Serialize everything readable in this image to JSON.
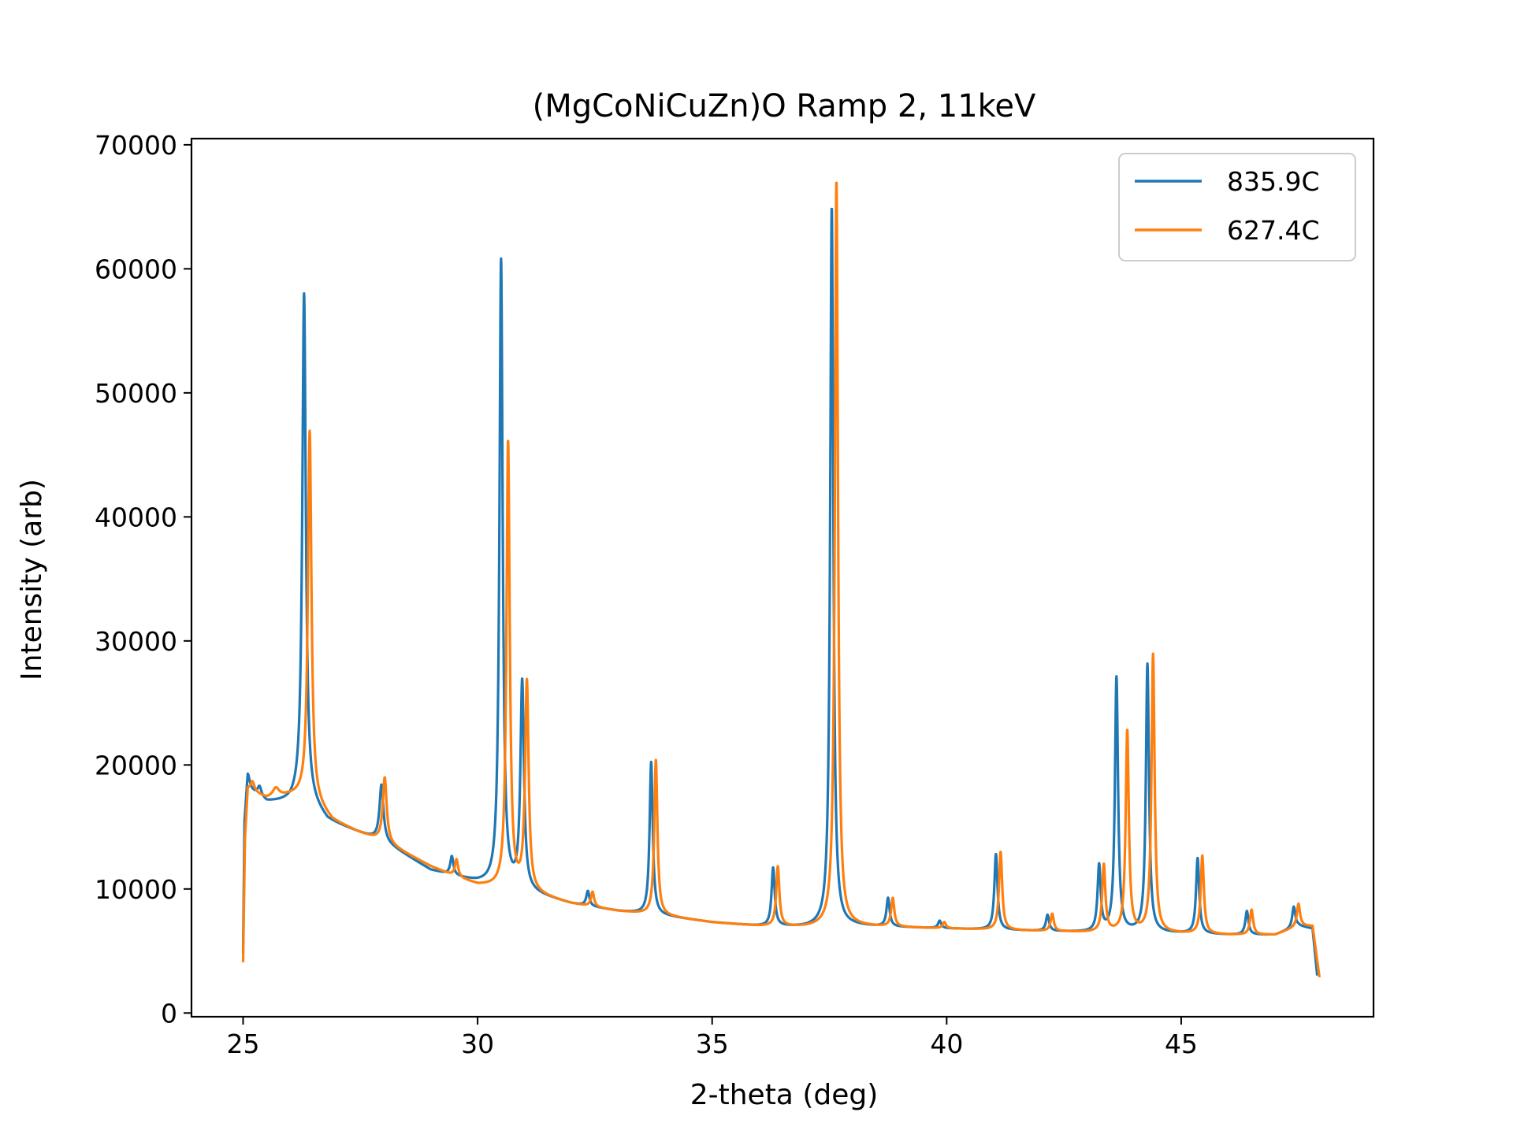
{
  "chart_data": {
    "type": "line",
    "title": "(MgCoNiCuZn)O Ramp 2, 11keV",
    "xlabel": "2-theta (deg)",
    "ylabel": "Intensity (arb)",
    "xlim": [
      23.9,
      49.1
    ],
    "ylim": [
      -300,
      70500
    ],
    "xticks": [
      25,
      30,
      35,
      40,
      45
    ],
    "yticks": [
      0,
      10000,
      20000,
      30000,
      40000,
      50000,
      60000,
      70000
    ],
    "grid": false,
    "legend_position": "top-right",
    "series": [
      {
        "name": "835.9C",
        "color": "#1f77b4",
        "background": [
          [
            25.0,
            4500
          ],
          [
            25.03,
            15000
          ],
          [
            25.1,
            18000
          ],
          [
            25.5,
            17000
          ],
          [
            26.0,
            17000
          ],
          [
            26.3,
            17500
          ],
          [
            26.8,
            15500
          ],
          [
            27.5,
            14500
          ],
          [
            28.0,
            13800
          ],
          [
            29.0,
            11500
          ],
          [
            29.5,
            11000
          ],
          [
            30.0,
            10500
          ],
          [
            31.0,
            9800
          ],
          [
            32.0,
            8800
          ],
          [
            33.0,
            8200
          ],
          [
            34.0,
            7800
          ],
          [
            35.0,
            7300
          ],
          [
            36.0,
            7000
          ],
          [
            37.0,
            6900
          ],
          [
            38.0,
            7000
          ],
          [
            39.0,
            6900
          ],
          [
            40.0,
            6800
          ],
          [
            41.0,
            6700
          ],
          [
            42.0,
            6600
          ],
          [
            43.0,
            6500
          ],
          [
            44.0,
            6500
          ],
          [
            45.0,
            6400
          ],
          [
            46.0,
            6300
          ],
          [
            47.0,
            6300
          ],
          [
            47.5,
            7000
          ],
          [
            47.8,
            6800
          ],
          [
            47.9,
            3000
          ]
        ],
        "peaks": [
          [
            25.1,
            1200,
            0.05
          ],
          [
            25.35,
            800,
            0.05
          ],
          [
            26.3,
            40500,
            0.045
          ],
          [
            27.95,
            4500,
            0.05
          ],
          [
            29.45,
            1500,
            0.04
          ],
          [
            30.5,
            50500,
            0.042
          ],
          [
            30.95,
            16700,
            0.045
          ],
          [
            32.35,
            1200,
            0.04
          ],
          [
            33.7,
            12300,
            0.04
          ],
          [
            36.3,
            4700,
            0.04
          ],
          [
            37.55,
            58000,
            0.04
          ],
          [
            38.75,
            2300,
            0.04
          ],
          [
            39.85,
            600,
            0.04
          ],
          [
            41.05,
            6100,
            0.04
          ],
          [
            42.15,
            1300,
            0.04
          ],
          [
            43.25,
            5300,
            0.04
          ],
          [
            43.62,
            20500,
            0.04
          ],
          [
            44.28,
            21600,
            0.04
          ],
          [
            45.35,
            6100,
            0.04
          ],
          [
            46.4,
            1900,
            0.04
          ],
          [
            47.4,
            1700,
            0.04
          ]
        ]
      },
      {
        "name": "627.4C",
        "color": "#ff7f0e",
        "background": [
          [
            25.0,
            4000
          ],
          [
            25.04,
            14000
          ],
          [
            25.1,
            18000
          ],
          [
            25.5,
            17300
          ],
          [
            26.0,
            17500
          ],
          [
            26.4,
            17500
          ],
          [
            26.9,
            15500
          ],
          [
            27.5,
            14500
          ],
          [
            28.0,
            13800
          ],
          [
            29.0,
            11800
          ],
          [
            29.5,
            11000
          ],
          [
            30.0,
            10300
          ],
          [
            31.0,
            9800
          ],
          [
            32.0,
            8800
          ],
          [
            33.0,
            8200
          ],
          [
            34.0,
            7800
          ],
          [
            35.0,
            7300
          ],
          [
            36.0,
            7000
          ],
          [
            37.0,
            6900
          ],
          [
            38.0,
            7000
          ],
          [
            39.0,
            6900
          ],
          [
            40.0,
            6800
          ],
          [
            41.0,
            6700
          ],
          [
            42.0,
            6600
          ],
          [
            43.0,
            6500
          ],
          [
            44.0,
            6500
          ],
          [
            45.0,
            6400
          ],
          [
            46.0,
            6300
          ],
          [
            47.0,
            6300
          ],
          [
            47.5,
            7000
          ],
          [
            47.8,
            7000
          ],
          [
            47.95,
            2800
          ]
        ],
        "peaks": [
          [
            25.2,
            800,
            0.05
          ],
          [
            25.7,
            700,
            0.08
          ],
          [
            26.42,
            29500,
            0.045
          ],
          [
            28.02,
            5200,
            0.05
          ],
          [
            29.55,
            1400,
            0.04
          ],
          [
            30.65,
            36000,
            0.042
          ],
          [
            31.05,
            16800,
            0.045
          ],
          [
            32.45,
            1200,
            0.04
          ],
          [
            33.8,
            12500,
            0.04
          ],
          [
            36.4,
            4800,
            0.04
          ],
          [
            37.65,
            60100,
            0.04
          ],
          [
            38.85,
            2300,
            0.04
          ],
          [
            39.95,
            500,
            0.04
          ],
          [
            41.15,
            6300,
            0.04
          ],
          [
            42.25,
            1400,
            0.04
          ],
          [
            43.35,
            5400,
            0.04
          ],
          [
            43.85,
            16200,
            0.04
          ],
          [
            44.4,
            22400,
            0.04
          ],
          [
            45.45,
            6300,
            0.04
          ],
          [
            46.5,
            2000,
            0.04
          ],
          [
            47.5,
            1800,
            0.04
          ]
        ]
      }
    ]
  }
}
